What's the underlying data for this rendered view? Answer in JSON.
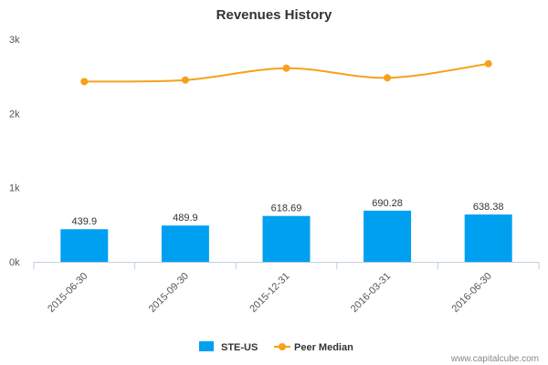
{
  "chart_data": {
    "type": "bar",
    "title": "Revenues History",
    "categories": [
      "2015-06-30",
      "2015-09-30",
      "2015-12-31",
      "2016-03-31",
      "2016-06-30"
    ],
    "series": [
      {
        "name": "STE-US",
        "type": "bar",
        "values": [
          439.9,
          489.9,
          618.69,
          690.28,
          638.38
        ],
        "color": "#00a0f0"
      },
      {
        "name": "Peer Median",
        "type": "line",
        "values": [
          2430,
          2450,
          2610,
          2480,
          2670
        ],
        "color": "#f8a01a"
      }
    ],
    "data_labels": [
      "439.9",
      "489.9",
      "618.69",
      "690.28",
      "638.38"
    ],
    "yticks": [
      "0k",
      "1k",
      "2k",
      "3k"
    ],
    "ylim": [
      0,
      3000
    ],
    "grid": false,
    "legend_position": "bottom"
  },
  "watermark": "www.capitalcube.com"
}
